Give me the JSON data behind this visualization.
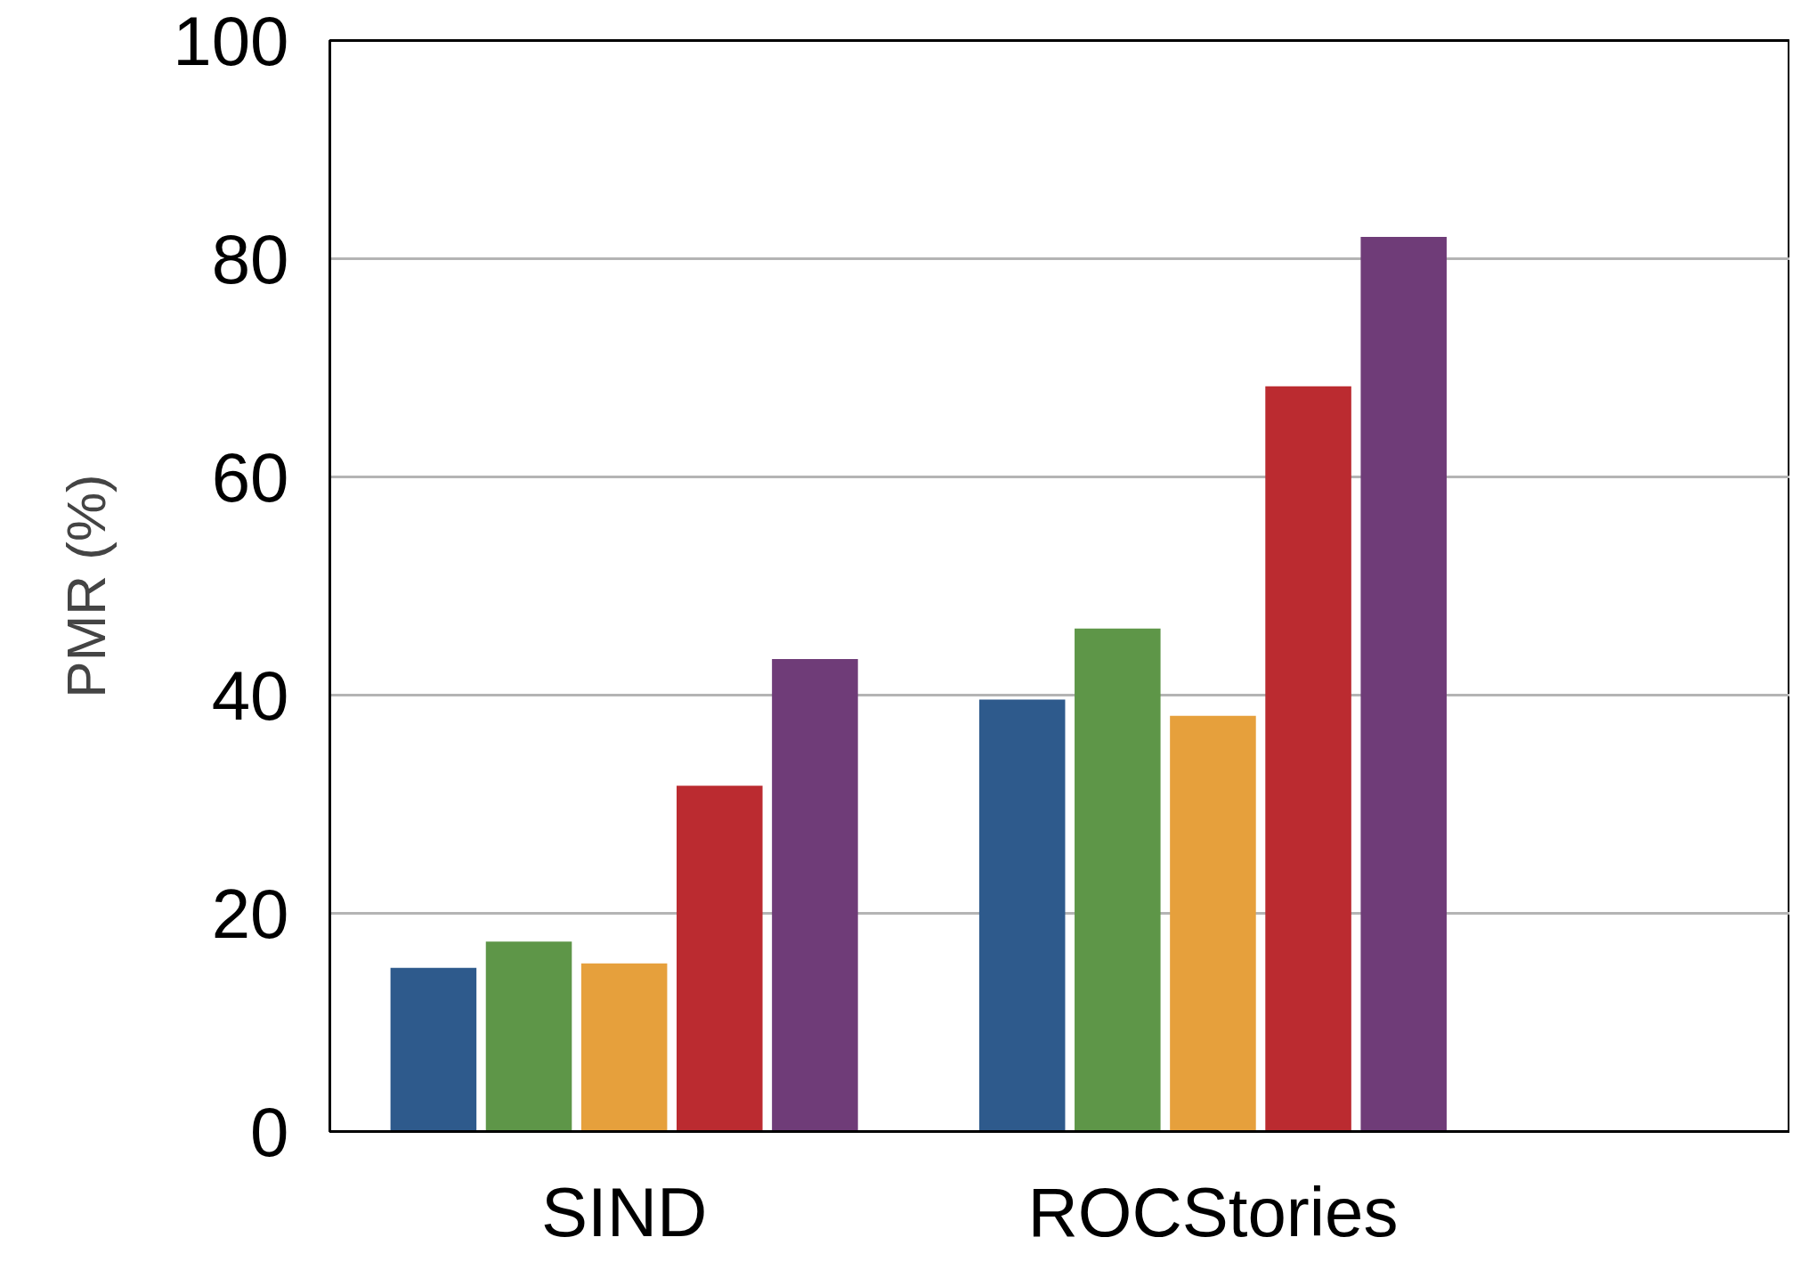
{
  "chart_data": {
    "type": "bar",
    "ylabel": "PMR (%)",
    "categories": [
      "SIND",
      "ROCStories"
    ],
    "series": [
      {
        "color": "#2e5a8c",
        "values": [
          15.0,
          39.6
        ]
      },
      {
        "color": "#5e9648",
        "values": [
          17.4,
          46.1
        ]
      },
      {
        "color": "#e6a03c",
        "values": [
          15.4,
          38.1
        ]
      },
      {
        "color": "#bb2b30",
        "values": [
          31.7,
          68.3
        ]
      },
      {
        "color": "#6f3c78",
        "values": [
          43.3,
          82.0
        ]
      }
    ],
    "ylim": [
      0,
      100
    ],
    "yticks": [
      0,
      20,
      40,
      60,
      80,
      100
    ],
    "grid": "y"
  }
}
